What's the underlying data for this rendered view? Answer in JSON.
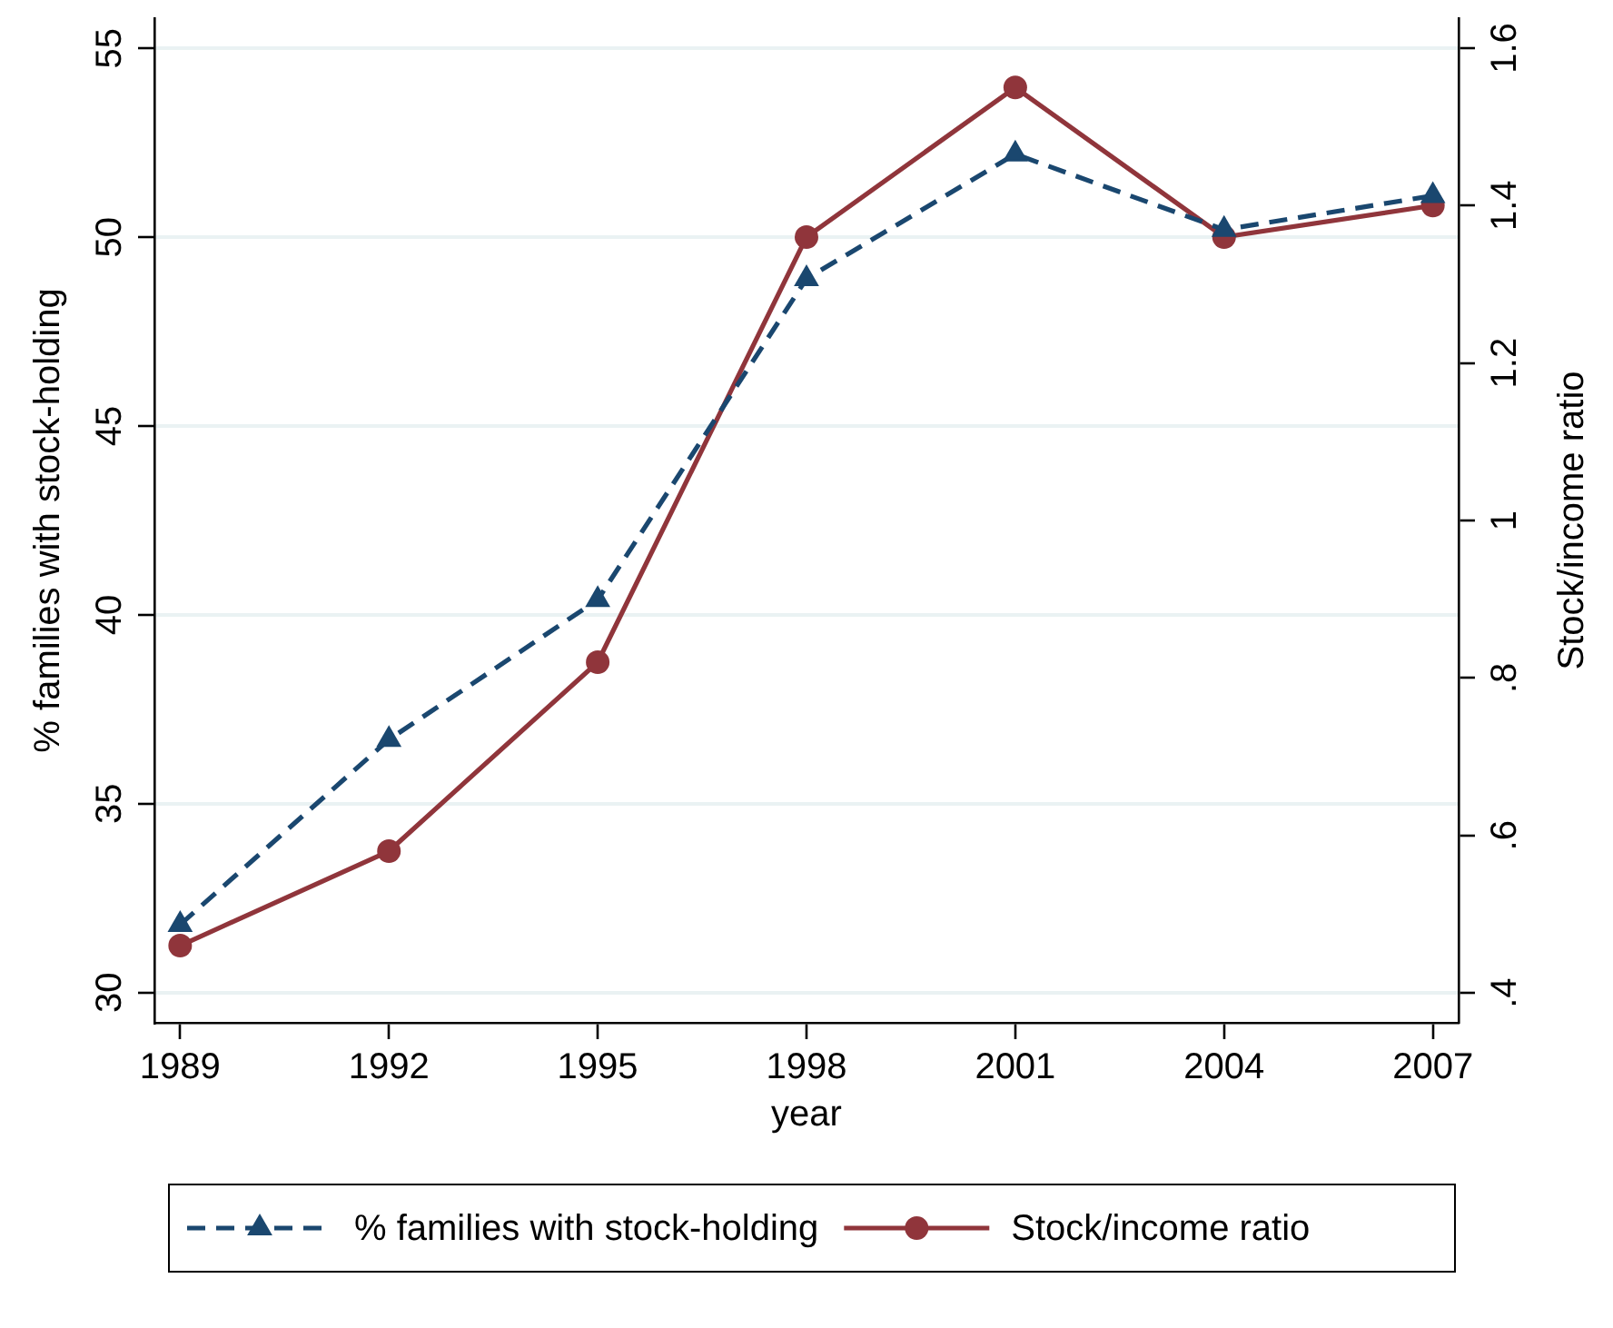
{
  "chart_data": {
    "type": "line",
    "x": [
      1989,
      1992,
      1995,
      1998,
      2001,
      2004,
      2007
    ],
    "xlim": [
      1988.63,
      2007.37
    ],
    "xticks": [
      1989,
      1992,
      1995,
      1998,
      2001,
      2004,
      2007
    ],
    "xlabel": "year",
    "ylabel": "% families with stock-holding",
    "y2label": "Stock/income ratio",
    "ylim": [
      29.2,
      55.8
    ],
    "yticks": [
      30,
      35,
      40,
      45,
      50,
      55
    ],
    "y2lim": [
      0.362,
      1.638
    ],
    "y2ticks": [
      {
        "value": 0.4,
        "label": ".4"
      },
      {
        "value": 0.6,
        "label": ".6"
      },
      {
        "value": 0.8,
        "label": ".8"
      },
      1,
      1.2,
      1.4,
      1.6
    ],
    "grid": "y",
    "legend": "bottom",
    "series": [
      {
        "name": "% families with stock-holding",
        "color": "#1a476f",
        "values": [
          31.8,
          36.7,
          40.4,
          48.9,
          52.2,
          50.2,
          51.1
        ],
        "marker": "triangle",
        "line_style": "dashed"
      },
      {
        "name": "Stock/income ratio",
        "color": "#90353b",
        "values": [
          0.46,
          0.58,
          0.82,
          1.36,
          1.55,
          1.36,
          1.4
        ],
        "marker": "circle",
        "line_style": "solid",
        "axis": "y2"
      }
    ]
  }
}
